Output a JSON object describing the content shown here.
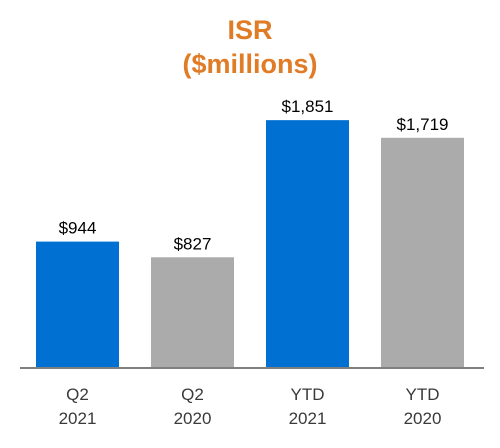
{
  "chart_data": {
    "type": "bar",
    "title_lines": [
      "ISR",
      "($millions)"
    ],
    "title_color": "#E07B26",
    "categories": [
      [
        "Q2",
        "2021"
      ],
      [
        "Q2",
        "2020"
      ],
      [
        "YTD",
        "2021"
      ],
      [
        "YTD",
        "2020"
      ]
    ],
    "values": [
      944,
      827,
      1851,
      1719
    ],
    "value_labels": [
      "$944",
      "$827",
      "$1,851",
      "$1,719"
    ],
    "bar_colors": [
      "#0070D2",
      "#ABABAB",
      "#0070D2",
      "#ABABAB"
    ],
    "axis_color": "#7F7F7F",
    "ylim": [
      0,
      2000
    ],
    "grid": false,
    "legend": "none"
  }
}
